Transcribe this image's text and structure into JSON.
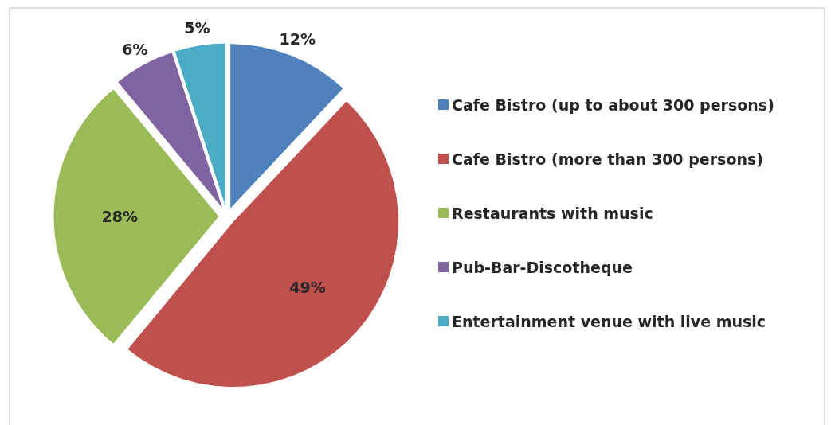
{
  "chart_data": {
    "type": "pie",
    "categories": [
      "Cafe Bistro (up to about 300 persons)",
      "Cafe Bistro (more than 300 persons)",
      "Restaurants with music",
      "Pub-Bar-Discotheque",
      "Entertainment venue with live music"
    ],
    "values": [
      12,
      49,
      28,
      6,
      5
    ],
    "colors": [
      "#4f81bd",
      "#c0504d",
      "#9bbb59",
      "#8064a2",
      "#4bacc6"
    ],
    "value_labels": [
      "12%",
      "49%",
      "28%",
      "6%",
      "5%"
    ],
    "legend": "right"
  }
}
